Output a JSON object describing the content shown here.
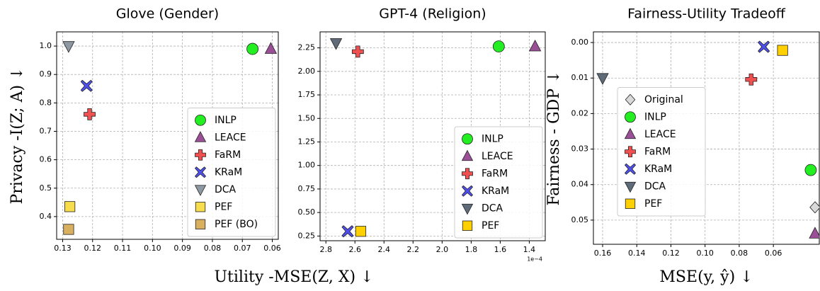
{
  "xlabel": "Utility -MSE(Z, X) ↓",
  "chart_data": [
    {
      "type": "scatter",
      "title": "Glove (Gender)",
      "ylabel": "Privacy -I(Z; A) ↓",
      "xlim": [
        0.132,
        0.058
      ],
      "ylim": [
        0.32,
        1.05
      ],
      "xticks": [
        0.13,
        0.12,
        0.11,
        {
          "value": 0.1,
          "label": "0.10"
        },
        0.09,
        0.08,
        0.07,
        0.06
      ],
      "yticks": [
        0.4,
        0.5,
        0.6,
        0.7,
        0.8,
        0.9,
        {
          "value": 1,
          "label": "1.0"
        }
      ],
      "grid": true,
      "legend": "lower right",
      "series": [
        {
          "name": "INLP",
          "color": "#22ee22",
          "marker": "circle",
          "x": [
            0.0666
          ],
          "y": [
            0.99
          ]
        },
        {
          "name": "LEACE",
          "color": "#9b4f96",
          "marker": "triangle-up",
          "x": [
            0.0605
          ],
          "y": [
            0.99
          ]
        },
        {
          "name": "FaRM",
          "color": "#f05050",
          "marker": "plus",
          "x": [
            0.121
          ],
          "y": [
            0.76
          ]
        },
        {
          "name": "KRaM",
          "color": "#4f4fef",
          "marker": "x",
          "x": [
            0.122
          ],
          "y": [
            0.86
          ]
        },
        {
          "name": "DCA",
          "color": "#8e98a3",
          "marker": "triangle-down",
          "x": [
            0.128
          ],
          "y": [
            1
          ]
        },
        {
          "name": "PEF",
          "color": "#f7dc4b",
          "marker": "square",
          "x": [
            0.1276
          ],
          "y": [
            0.435
          ]
        },
        {
          "name": "PEF (BO)",
          "color": "#d8b060",
          "marker": "square",
          "x": [
            0.128
          ],
          "y": [
            0.355
          ]
        }
      ]
    },
    {
      "type": "scatter",
      "title": "GPT-4 (Religion)",
      "x_offset_label": "1e−4",
      "xlim": [
        2.84,
        1.29
      ],
      "ylim": [
        0.2,
        2.42
      ],
      "xticks": [
        2.8,
        2.6,
        2.4,
        2.2,
        {
          "value": 2,
          "label": "2.0"
        },
        1.8,
        1.6,
        1.4
      ],
      "yticks": [
        0.25,
        {
          "value": 0.5,
          "label": "0.50"
        },
        0.75,
        {
          "value": 1,
          "label": "1.00"
        },
        1.25,
        {
          "value": 1.5,
          "label": "1.50"
        },
        1.75,
        {
          "value": 2,
          "label": "2.00"
        },
        2.25
      ],
      "grid": true,
      "legend": "lower right",
      "series": [
        {
          "name": "INLP",
          "color": "#22ee22",
          "marker": "circle",
          "x": [
            1.61
          ],
          "y": [
            2.265
          ]
        },
        {
          "name": "LEACE",
          "color": "#9b4f96",
          "marker": "triangle-up",
          "x": [
            1.36
          ],
          "y": [
            2.265
          ]
        },
        {
          "name": "FaRM",
          "color": "#f05050",
          "marker": "plus",
          "x": [
            2.58
          ],
          "y": [
            2.21
          ]
        },
        {
          "name": "KRaM",
          "color": "#4f4fef",
          "marker": "x",
          "x": [
            2.65
          ],
          "y": [
            0.3
          ]
        },
        {
          "name": "DCA",
          "color": "#5f6b78",
          "marker": "triangle-down",
          "x": [
            2.73
          ],
          "y": [
            2.3
          ]
        },
        {
          "name": "PEF",
          "color": "#ffd000",
          "marker": "square",
          "x": [
            2.56
          ],
          "y": [
            0.3
          ]
        }
      ]
    },
    {
      "type": "scatter",
      "title": "Fairness-Utility Tradeoff",
      "xlabel": "MSE(y, ŷ) ↓",
      "ylabel": "Fairness - GDP ↓",
      "xlim": [
        0.1654,
        0.0331
      ],
      "ylim": [
        0.0568,
        -0.003
      ],
      "xticks": [
        0.16,
        0.14,
        0.12,
        {
          "value": 0.1,
          "label": "0.10"
        },
        0.08,
        0.06
      ],
      "yticks": [
        {
          "value": 0,
          "label": "0.00"
        },
        0.01,
        0.02,
        0.03,
        0.04,
        0.05
      ],
      "grid": true,
      "legend": "center left",
      "series": [
        {
          "name": "Original",
          "color": "#d9d9d9",
          "marker": "diamond",
          "x": [
            0.0356
          ],
          "y": [
            0.0464
          ]
        },
        {
          "name": "INLP",
          "color": "#22ee22",
          "marker": "circle",
          "x": [
            0.0381
          ],
          "y": [
            0.0359
          ]
        },
        {
          "name": "LEACE",
          "color": "#9b4f96",
          "marker": "triangle-up",
          "x": [
            0.0356
          ],
          "y": [
            0.0538
          ]
        },
        {
          "name": "FaRM",
          "color": "#f05050",
          "marker": "plus",
          "x": [
            0.073
          ],
          "y": [
            0.0104
          ]
        },
        {
          "name": "KRaM",
          "color": "#4f4fef",
          "marker": "x",
          "x": [
            0.0656
          ],
          "y": [
            0.0012
          ]
        },
        {
          "name": "DCA",
          "color": "#5f6b78",
          "marker": "triangle-down",
          "x": [
            0.16
          ],
          "y": [
            0.01
          ]
        },
        {
          "name": "PEF",
          "color": "#ffd000",
          "marker": "square",
          "x": [
            0.0546
          ],
          "y": [
            0.0022
          ]
        }
      ]
    }
  ]
}
